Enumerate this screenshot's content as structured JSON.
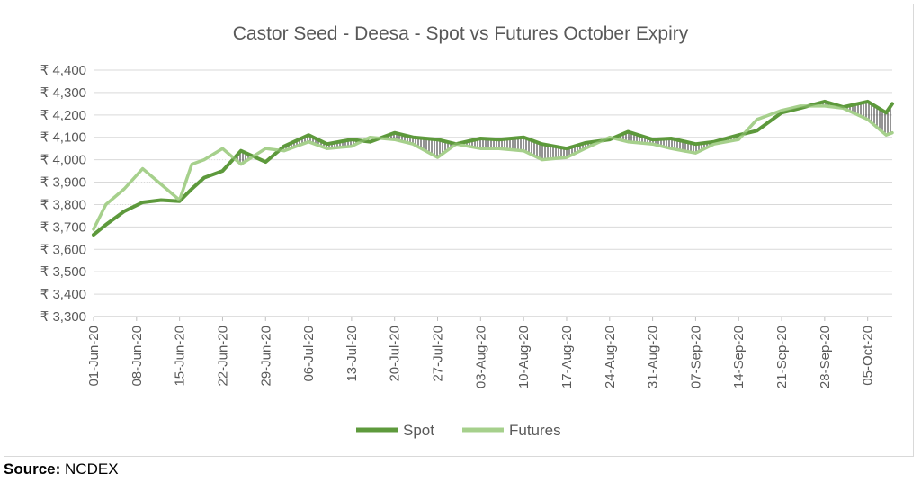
{
  "source": {
    "label": "Source:",
    "value": "NCDEX"
  },
  "chart_data": {
    "type": "line",
    "title": "Castor Seed - Deesa - Spot vs Futures October Expiry",
    "xlabel": "",
    "ylabel": "",
    "ylim": [
      3300,
      4400
    ],
    "y_ticks": [
      3300,
      3400,
      3500,
      3600,
      3700,
      3800,
      3900,
      4000,
      4100,
      4200,
      4300,
      4400
    ],
    "y_tick_labels": [
      "₹ 3,300",
      "₹ 3,400",
      "₹ 3,500",
      "₹ 3,600",
      "₹ 3,700",
      "₹ 3,800",
      "₹ 3,900",
      "₹ 4,000",
      "₹ 4,100",
      "₹ 4,200",
      "₹ 4,300",
      "₹ 4,400"
    ],
    "x_ticks": [
      "01-Jun-20",
      "08-Jun-20",
      "15-Jun-20",
      "22-Jun-20",
      "29-Jun-20",
      "06-Jul-20",
      "13-Jul-20",
      "20-Jul-20",
      "27-Jul-20",
      "03-Aug-20",
      "10-Aug-20",
      "17-Aug-20",
      "24-Aug-20",
      "31-Aug-20",
      "07-Sep-20",
      "14-Sep-20",
      "21-Sep-20",
      "28-Sep-20",
      "05-Oct-20"
    ],
    "x": [
      "2020-06-01",
      "2020-06-03",
      "2020-06-06",
      "2020-06-09",
      "2020-06-12",
      "2020-06-15",
      "2020-06-17",
      "2020-06-19",
      "2020-06-22",
      "2020-06-25",
      "2020-06-29",
      "2020-07-02",
      "2020-07-06",
      "2020-07-09",
      "2020-07-13",
      "2020-07-16",
      "2020-07-20",
      "2020-07-23",
      "2020-07-27",
      "2020-07-30",
      "2020-08-03",
      "2020-08-06",
      "2020-08-10",
      "2020-08-13",
      "2020-08-17",
      "2020-08-20",
      "2020-08-24",
      "2020-08-27",
      "2020-08-31",
      "2020-09-03",
      "2020-09-07",
      "2020-09-10",
      "2020-09-14",
      "2020-09-17",
      "2020-09-21",
      "2020-09-24",
      "2020-09-28",
      "2020-10-01",
      "2020-10-05",
      "2020-10-08",
      "2020-10-09"
    ],
    "legend_position": "bottom",
    "grid": true,
    "series": [
      {
        "name": "Spot",
        "color": "#5e9a3c",
        "values": [
          3665,
          3710,
          3770,
          3810,
          3820,
          3815,
          3870,
          3920,
          3950,
          4040,
          3990,
          4060,
          4110,
          4070,
          4090,
          4080,
          4120,
          4100,
          4090,
          4070,
          4095,
          4090,
          4100,
          4070,
          4050,
          4075,
          4090,
          4125,
          4090,
          4095,
          4070,
          4080,
          4110,
          4130,
          4210,
          4230,
          4260,
          4235,
          4260,
          4210,
          4250
        ]
      },
      {
        "name": "Futures",
        "color": "#a6d08c",
        "values": [
          3690,
          3800,
          3870,
          3960,
          3890,
          3820,
          3980,
          4000,
          4050,
          3980,
          4050,
          4040,
          4080,
          4050,
          4060,
          4100,
          4090,
          4070,
          4010,
          4070,
          4050,
          4050,
          4040,
          4000,
          4010,
          4050,
          4100,
          4080,
          4070,
          4050,
          4030,
          4070,
          4090,
          4180,
          4220,
          4240,
          4240,
          4230,
          4180,
          4110,
          4120
        ]
      }
    ]
  }
}
